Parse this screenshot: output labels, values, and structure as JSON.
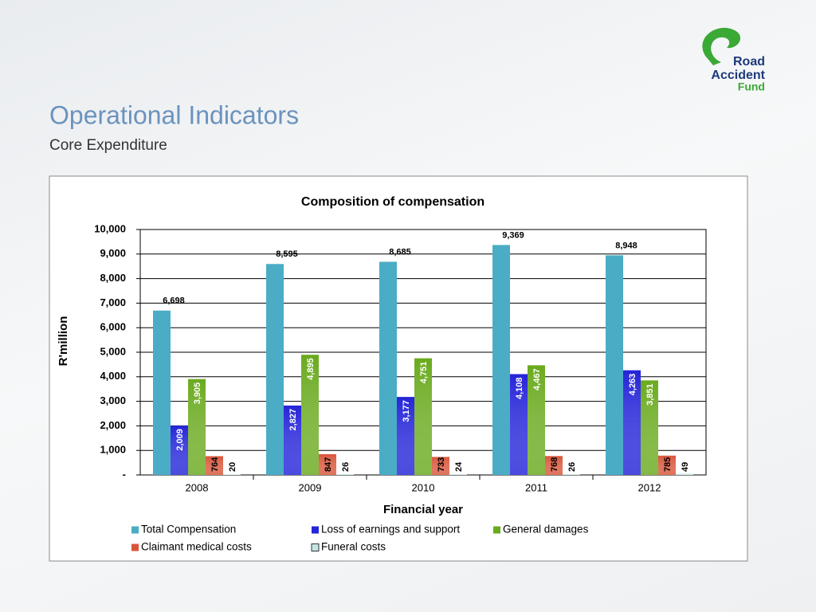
{
  "header": {
    "title": "Operational Indicators",
    "subtitle": "Core Expenditure"
  },
  "logo": {
    "line1": "Road",
    "line2": "Accident",
    "line3": "Fund"
  },
  "chart_data": {
    "type": "bar",
    "title": "Composition of compensation",
    "x_label": "Financial year",
    "y_label": "R'million",
    "categories": [
      "2008",
      "2009",
      "2010",
      "2011",
      "2012"
    ],
    "series": [
      {
        "name": "Total Compensation",
        "color": "#4bacc6",
        "values": [
          6698,
          8595,
          8685,
          9369,
          8948
        ],
        "value_labels": [
          "6,698",
          "8,595",
          "8,685",
          "9,369",
          "8,948"
        ]
      },
      {
        "name": "Loss of earnings and support",
        "color": "#2424d8",
        "values": [
          2009,
          2827,
          3177,
          4108,
          4263
        ],
        "value_labels": [
          "2,009",
          "2,827",
          "3,177",
          "4,108",
          "4,263"
        ]
      },
      {
        "name": "General damages",
        "color": "#6aaa1e",
        "values": [
          3905,
          4895,
          4751,
          4467,
          3851
        ],
        "value_labels": [
          "3,905",
          "4,895",
          "4,751",
          "4,467",
          "3,851"
        ]
      },
      {
        "name": "Claimant medical costs",
        "color": "#d9553a",
        "values": [
          764,
          847,
          733,
          768,
          785
        ]
      },
      {
        "name": "Funeral costs",
        "color": "#c6e6e6",
        "values": [
          20,
          26,
          24,
          26,
          49
        ]
      }
    ],
    "ylim": [
      0,
      10000
    ],
    "yticks": [
      {
        "value": 0,
        "label": "-"
      },
      {
        "value": 1000,
        "label": "1,000"
      },
      {
        "value": 2000,
        "label": "2,000"
      },
      {
        "value": 3000,
        "label": "3,000"
      },
      {
        "value": 4000,
        "label": "4,000"
      },
      {
        "value": 5000,
        "label": "5,000"
      },
      {
        "value": 6000,
        "label": "6,000"
      },
      {
        "value": 7000,
        "label": "7,000"
      },
      {
        "value": 8000,
        "label": "8,000"
      },
      {
        "value": 9000,
        "label": "9,000"
      },
      {
        "value": 10000,
        "label": "10,000"
      }
    ],
    "grid": true
  }
}
